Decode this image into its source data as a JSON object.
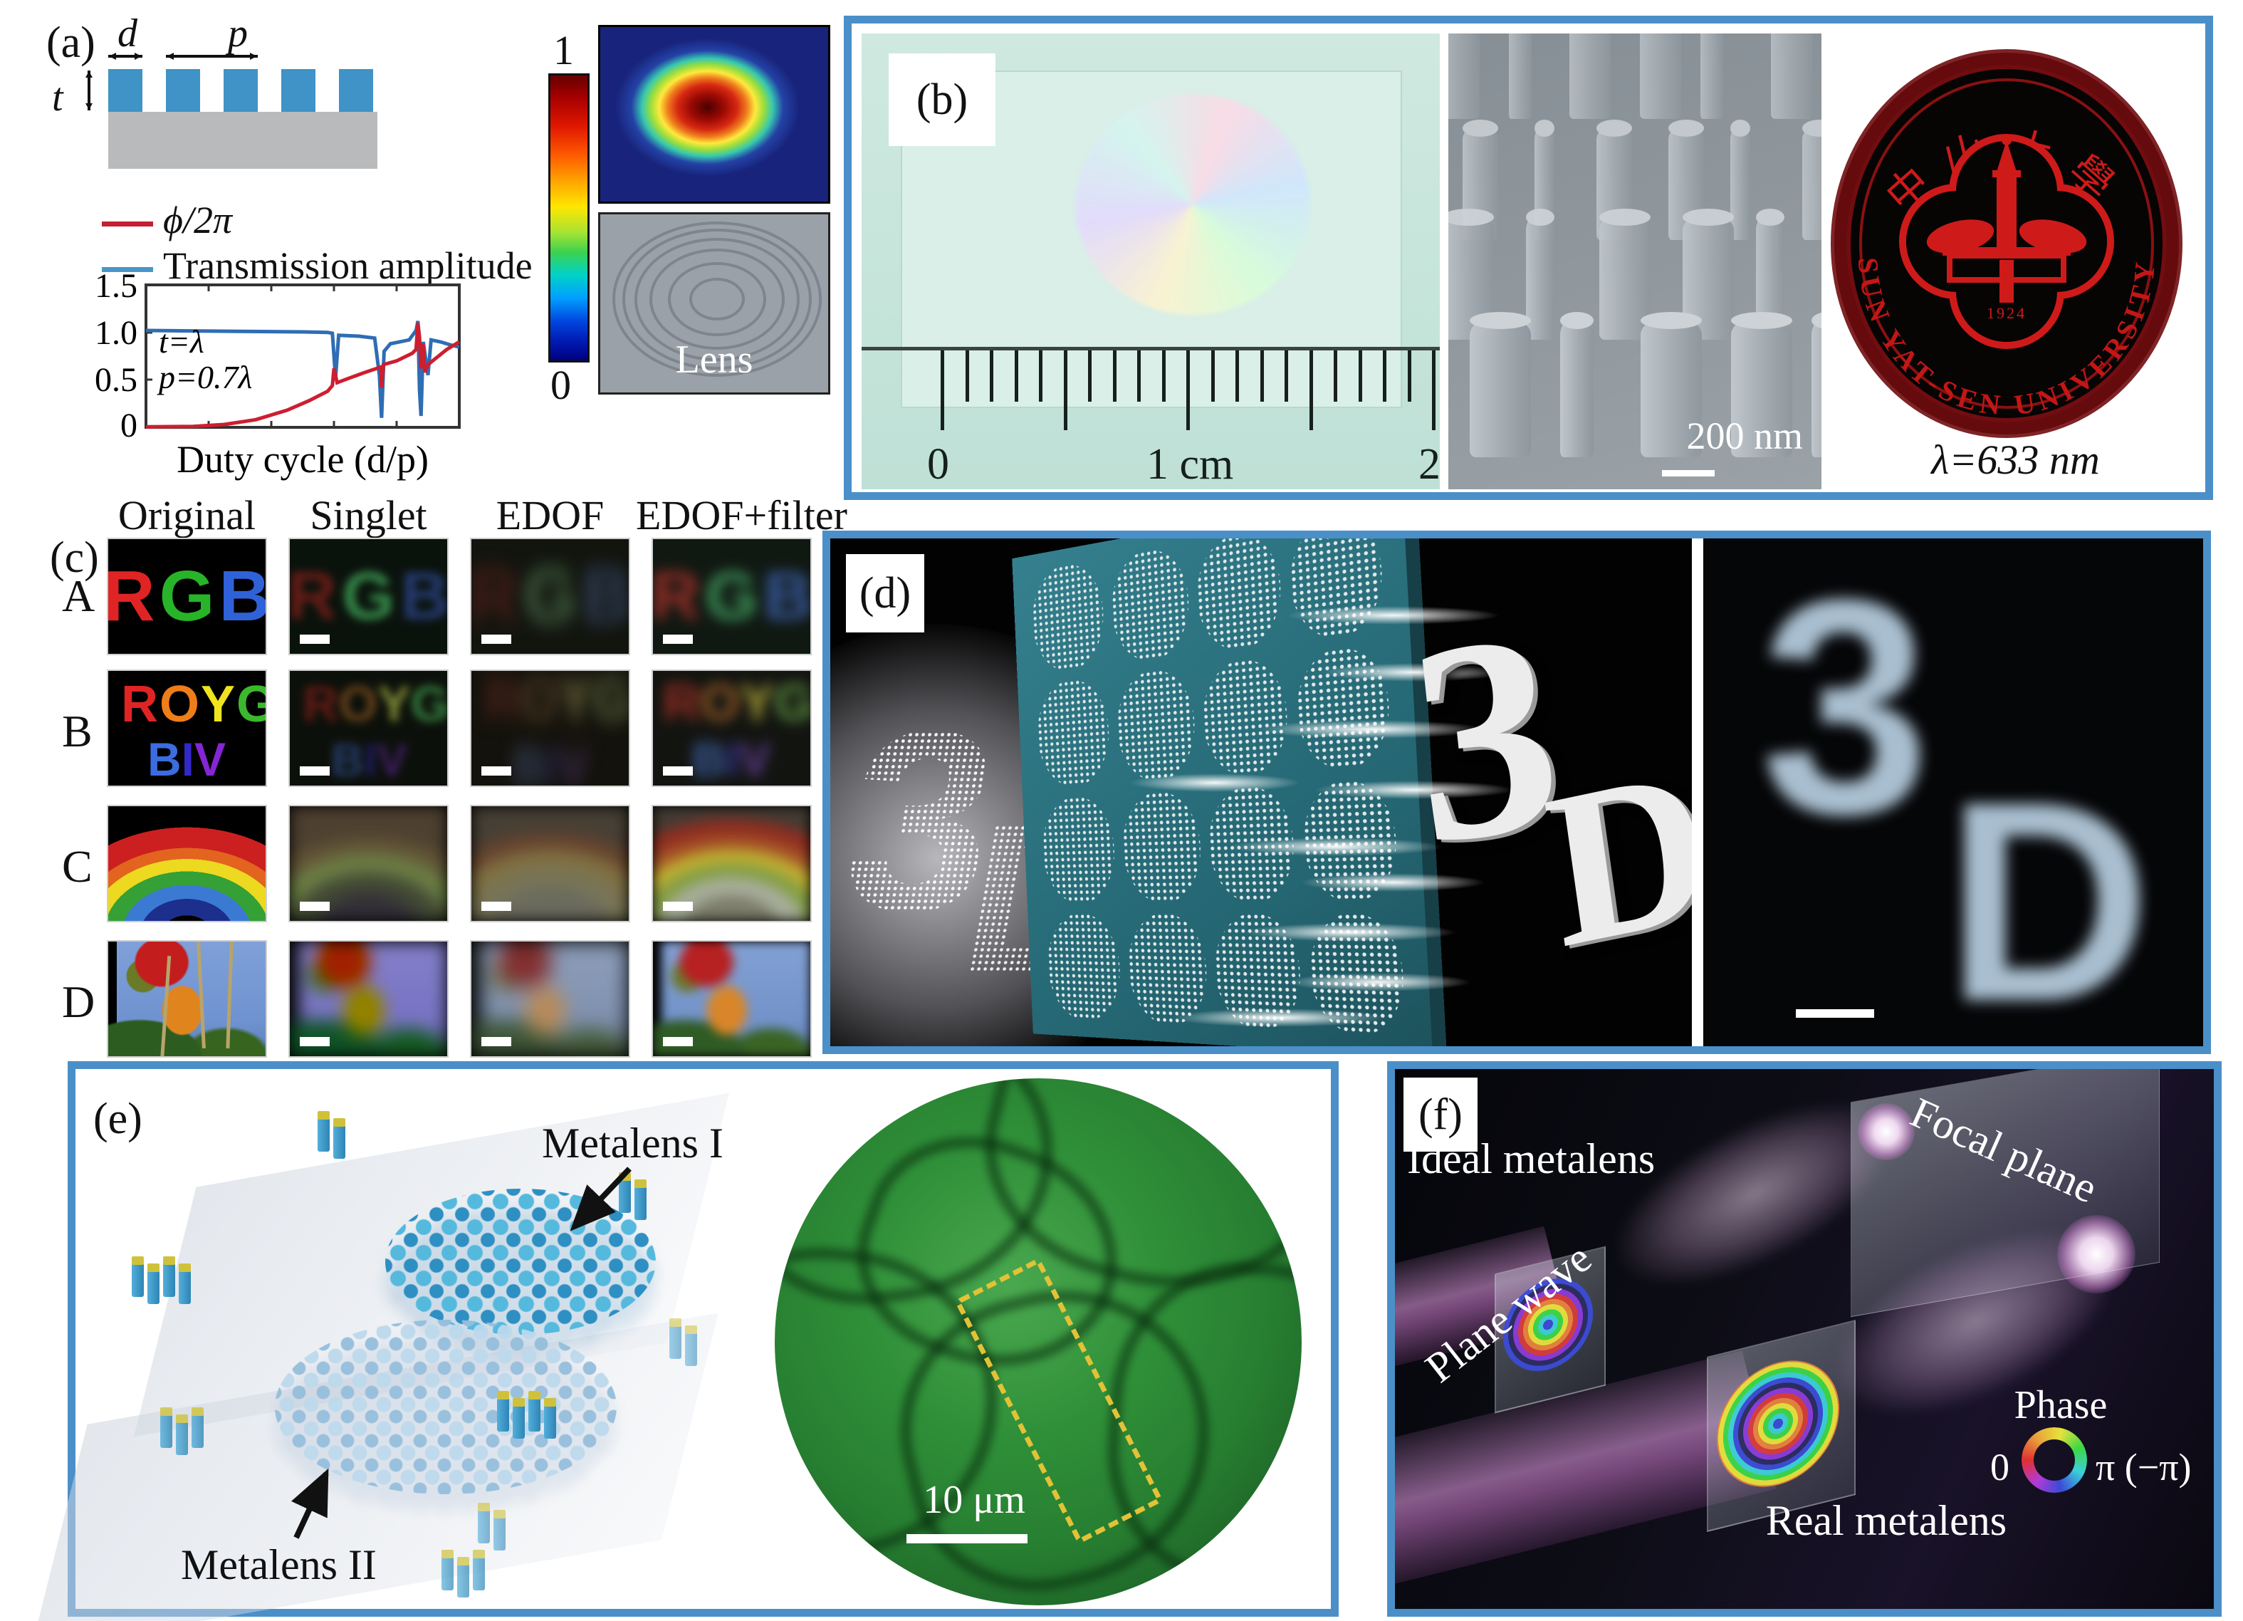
{
  "figure": {
    "border_color": "#4b8fc9"
  },
  "a": {
    "label": "(a)",
    "schematic": {
      "d": "d",
      "p": "p",
      "t": "t"
    },
    "legend": [
      {
        "label": "ϕ/2π",
        "color": "#c41f33"
      },
      {
        "label": "Transmission amplitude",
        "color": "#4a96c8"
      }
    ],
    "plot": {
      "annotation1": "t=λ",
      "annotation2": "p=0.7λ",
      "xlabel": "Duty cycle (d/p)",
      "yticks": [
        "1.5",
        "1.0",
        "0.5",
        "0"
      ]
    },
    "colorbar": {
      "max": "1",
      "min": "0"
    },
    "lens_label": "Lens"
  },
  "chart_data": {
    "type": "line",
    "title": "",
    "xlabel": "Duty cycle (d/p)",
    "ylabel": "",
    "xlim": [
      0,
      1
    ],
    "ylim": [
      0,
      1.5
    ],
    "yticks": [
      0,
      0.5,
      1.0,
      1.5
    ],
    "grid": false,
    "annotations": [
      "t=λ",
      "p=0.7λ"
    ],
    "series": [
      {
        "name": "Transmission amplitude",
        "color": "#2f6db4",
        "points": [
          [
            0,
            1.02
          ],
          [
            0.3,
            1.01
          ],
          [
            0.5,
            1.005
          ],
          [
            0.58,
            1.0
          ],
          [
            0.595,
            0.99
          ],
          [
            0.605,
            0.52
          ],
          [
            0.615,
            0.97
          ],
          [
            0.68,
            0.96
          ],
          [
            0.73,
            0.94
          ],
          [
            0.745,
            0.55
          ],
          [
            0.752,
            0.1
          ],
          [
            0.76,
            0.8
          ],
          [
            0.78,
            0.88
          ],
          [
            0.84,
            0.92
          ],
          [
            0.862,
            1.02
          ],
          [
            0.868,
            1.12
          ],
          [
            0.873,
            0.4
          ],
          [
            0.878,
            0.12
          ],
          [
            0.885,
            0.9
          ],
          [
            0.9,
            0.55
          ],
          [
            0.91,
            0.92
          ],
          [
            0.94,
            0.9
          ],
          [
            0.97,
            0.87
          ],
          [
            1,
            0.845
          ]
        ]
      },
      {
        "name": "ϕ/2π",
        "color": "#cc1f30",
        "points": [
          [
            0,
            0.005
          ],
          [
            0.15,
            0.01
          ],
          [
            0.25,
            0.03
          ],
          [
            0.35,
            0.08
          ],
          [
            0.45,
            0.18
          ],
          [
            0.52,
            0.28
          ],
          [
            0.58,
            0.38
          ],
          [
            0.595,
            0.44
          ],
          [
            0.6,
            0.62
          ],
          [
            0.61,
            0.47
          ],
          [
            0.65,
            0.52
          ],
          [
            0.7,
            0.58
          ],
          [
            0.75,
            0.635
          ],
          [
            0.752,
            0.42
          ],
          [
            0.758,
            0.66
          ],
          [
            0.8,
            0.7
          ],
          [
            0.85,
            0.78
          ],
          [
            0.862,
            0.82
          ],
          [
            0.868,
            1.1
          ],
          [
            0.873,
            0.95
          ],
          [
            0.878,
            0.62
          ],
          [
            0.884,
            0.88
          ],
          [
            0.89,
            0.58
          ],
          [
            0.9,
            0.66
          ],
          [
            0.93,
            0.74
          ],
          [
            0.96,
            0.82
          ],
          [
            1,
            0.9
          ]
        ]
      }
    ]
  },
  "b": {
    "label": "(b)",
    "ruler": {
      "ticks": [
        "0",
        "1 cm",
        "2"
      ]
    },
    "sem_scale": "200 nm",
    "logo": {
      "chinese": "中山大學",
      "english": "SUN YAT-SEN UNIVERSITY",
      "year": "1924",
      "color": "#c81818"
    },
    "wavelength": "λ=633 nm"
  },
  "c": {
    "label": "(c)",
    "columns": [
      "Original",
      "Singlet",
      "EDOF",
      "EDOF+filter"
    ],
    "row_labels": [
      "A",
      "B",
      "C",
      "D"
    ],
    "rowA": {
      "letters": [
        {
          "ch": "R",
          "color": "#e02424"
        },
        {
          "ch": "G",
          "color": "#28b428"
        },
        {
          "ch": "B",
          "color": "#2f62d8"
        }
      ]
    },
    "rowB": {
      "line1": [
        {
          "ch": "R",
          "color": "#e02424"
        },
        {
          "ch": "O",
          "color": "#ef7d1a"
        },
        {
          "ch": "Y",
          "color": "#efe41e"
        },
        {
          "ch": "G",
          "color": "#3cb82d"
        }
      ],
      "line2": [
        {
          "ch": "B",
          "color": "#3b6ce0"
        },
        {
          "ch": "I",
          "color": "#3328c8"
        },
        {
          "ch": "V",
          "color": "#8426d4"
        }
      ]
    }
  },
  "d": {
    "label": "(d)",
    "digit": "3",
    "letter": "D"
  },
  "e": {
    "label": "(e)",
    "lens1": "Metalens I",
    "lens2": "Metalens II",
    "scale": "10 μm"
  },
  "f": {
    "label": "(f)",
    "ideal": "Ideal metalens",
    "focal": "Focal plane",
    "wave": "Plane wave",
    "real": "Real metalens",
    "phase": {
      "title": "Phase",
      "min": "0",
      "max": "π (−π)"
    }
  }
}
